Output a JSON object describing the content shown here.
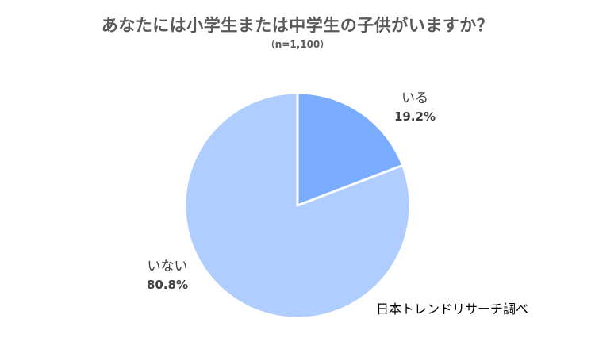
{
  "chart_data": {
    "type": "pie",
    "title": "あなたには小学生または中学生の子供がいますか？",
    "subtitle": "（n=1,100）",
    "start_angle_deg": 0,
    "direction": "clockwise",
    "legend": "none",
    "slices": [
      {
        "label": "いる",
        "value": 19.2,
        "value_label": "19.2%",
        "color": "#7aacff"
      },
      {
        "label": "いない",
        "value": 80.8,
        "value_label": "80.8%",
        "color": "#afcdfe"
      }
    ],
    "border_color": "#ffffff",
    "source": "日本トレンドリサーチ調べ"
  }
}
